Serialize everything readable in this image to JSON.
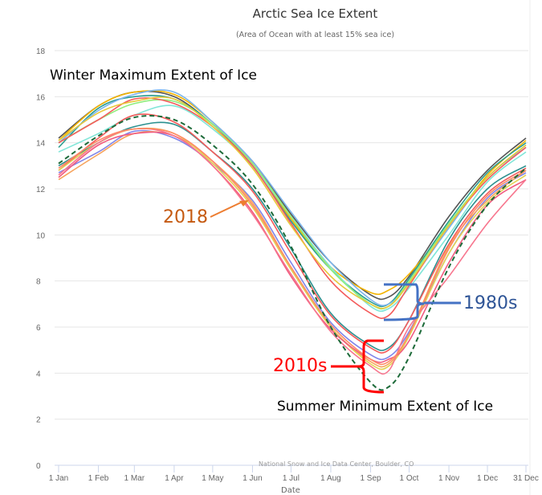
{
  "chart_data": {
    "type": "line",
    "title": "Arctic Sea Ice Extent",
    "subtitle": "(Area of Ocean with at least 15% sea ice)",
    "xlabel": "Date",
    "ylabel": "",
    "ylim": [
      0,
      18
    ],
    "yticks": [
      0,
      2,
      4,
      6,
      8,
      10,
      12,
      14,
      16,
      18
    ],
    "xticks": [
      {
        "label": "1 Jan",
        "day": 1
      },
      {
        "label": "1 Feb",
        "day": 32
      },
      {
        "label": "1 Mar",
        "day": 60
      },
      {
        "label": "1 Apr",
        "day": 91
      },
      {
        "label": "1 May",
        "day": 121
      },
      {
        "label": "1 Jun",
        "day": 152
      },
      {
        "label": "1 Jul",
        "day": 182
      },
      {
        "label": "1 Aug",
        "day": 213
      },
      {
        "label": "1 Sep",
        "day": 244
      },
      {
        "label": "1 Oct",
        "day": 274
      },
      {
        "label": "1 Nov",
        "day": 305
      },
      {
        "label": "1 Dec",
        "day": 335
      },
      {
        "label": "31 Dec",
        "day": 365
      }
    ],
    "grid": true,
    "credit": "National Snow and Ice Data Center, Boulder, CO",
    "x_days": [
      1,
      32,
      60,
      91,
      121,
      152,
      182,
      213,
      244,
      258,
      274,
      305,
      335,
      365
    ],
    "series": [
      {
        "color": "#555555",
        "values": [
          14.2,
          15.6,
          16.2,
          16.0,
          14.8,
          13.2,
          10.9,
          8.8,
          7.4,
          7.3,
          8.2,
          10.8,
          12.8,
          14.2
        ]
      },
      {
        "color": "#f4b400",
        "values": [
          14.1,
          15.6,
          16.2,
          16.1,
          14.9,
          13.1,
          10.7,
          8.6,
          7.5,
          7.6,
          8.3,
          10.4,
          12.6,
          14.1
        ]
      },
      {
        "color": "#2a9d8f",
        "values": [
          13.8,
          15.5,
          16.0,
          15.9,
          14.8,
          13.0,
          10.6,
          8.5,
          7.1,
          7.0,
          8.1,
          10.6,
          12.7,
          14.0
        ]
      },
      {
        "color": "#7cb5ec",
        "values": [
          14.0,
          15.4,
          16.1,
          16.2,
          14.9,
          13.2,
          11.0,
          8.8,
          7.2,
          7.0,
          7.9,
          10.3,
          12.5,
          13.8
        ]
      },
      {
        "color": "#80e6d8",
        "values": [
          13.6,
          14.4,
          15.2,
          15.6,
          14.6,
          13.0,
          10.8,
          8.6,
          6.9,
          6.8,
          7.7,
          10.0,
          12.3,
          13.6
        ]
      },
      {
        "color": "#90ed7d",
        "values": [
          14.0,
          15.0,
          15.7,
          15.8,
          14.8,
          13.1,
          10.8,
          8.5,
          7.0,
          6.9,
          8.0,
          10.5,
          12.5,
          13.9
        ]
      },
      {
        "color": "#f45b5b",
        "values": [
          14.0,
          15.0,
          15.9,
          15.7,
          14.7,
          13.0,
          10.5,
          8.0,
          6.6,
          6.5,
          7.8,
          10.4,
          12.4,
          13.8
        ]
      },
      {
        "color": "#e8c83a",
        "values": [
          14.1,
          15.3,
          15.8,
          15.9,
          14.7,
          12.9,
          10.4,
          8.2,
          7.0,
          6.9,
          7.9,
          10.4,
          12.5,
          13.9
        ]
      },
      {
        "color": "#2b908f",
        "values": [
          13.0,
          14.0,
          14.7,
          14.8,
          13.6,
          12.0,
          9.4,
          6.6,
          5.2,
          5.1,
          6.3,
          9.8,
          12.0,
          13.0
        ]
      },
      {
        "color": "#f45b5b",
        "values": [
          12.8,
          14.2,
          15.2,
          14.9,
          13.6,
          11.9,
          9.2,
          6.5,
          5.1,
          5.0,
          6.3,
          9.6,
          11.8,
          12.9
        ]
      },
      {
        "color": "#8085e9",
        "values": [
          12.7,
          13.6,
          14.5,
          14.2,
          13.1,
          11.5,
          8.8,
          6.2,
          4.8,
          4.7,
          5.8,
          9.2,
          11.6,
          12.7
        ]
      },
      {
        "color": "#f7a35c",
        "values": [
          12.4,
          13.5,
          14.4,
          14.3,
          13.2,
          11.4,
          8.6,
          6.0,
          4.5,
          4.4,
          5.7,
          9.5,
          11.5,
          12.8
        ]
      },
      {
        "color": "#e4d354",
        "values": [
          12.8,
          14.0,
          14.6,
          14.4,
          13.1,
          11.2,
          8.5,
          6.0,
          4.4,
          4.3,
          5.6,
          9.2,
          11.4,
          12.6
        ]
      },
      {
        "color": "#f15c80",
        "values": [
          12.5,
          13.9,
          14.4,
          14.3,
          13.0,
          11.0,
          8.2,
          5.9,
          4.6,
          4.6,
          5.4,
          8.8,
          11.3,
          12.4
        ]
      },
      {
        "color": "#f7768e",
        "values": [
          12.6,
          14.0,
          14.6,
          14.3,
          13.0,
          10.9,
          8.3,
          5.8,
          4.3,
          4.1,
          6.0,
          8.2,
          10.5,
          12.4
        ]
      },
      {
        "color": "#ff8a65",
        "values": [
          12.9,
          14.1,
          14.6,
          14.4,
          13.2,
          11.3,
          8.6,
          6.1,
          4.6,
          4.5,
          5.7,
          9.4,
          11.7,
          12.8
        ]
      },
      {
        "color": "#1e6b3a",
        "dashed": true,
        "values": [
          13.1,
          14.3,
          15.1,
          15.0,
          13.9,
          12.2,
          9.5,
          6.0,
          3.6,
          3.4,
          4.7,
          8.6,
          11.3,
          12.9
        ]
      }
    ]
  },
  "annotations": {
    "winter": "Winter Maximum Extent of Ice",
    "summer": "Summer Minimum Extent of Ice",
    "y2018": "2018",
    "y1980s": "1980s",
    "y2010s": "2010s",
    "colors": {
      "y2018": "#c55a11",
      "y1980s": "#2f5597",
      "y2010s": "#ff0000"
    }
  }
}
